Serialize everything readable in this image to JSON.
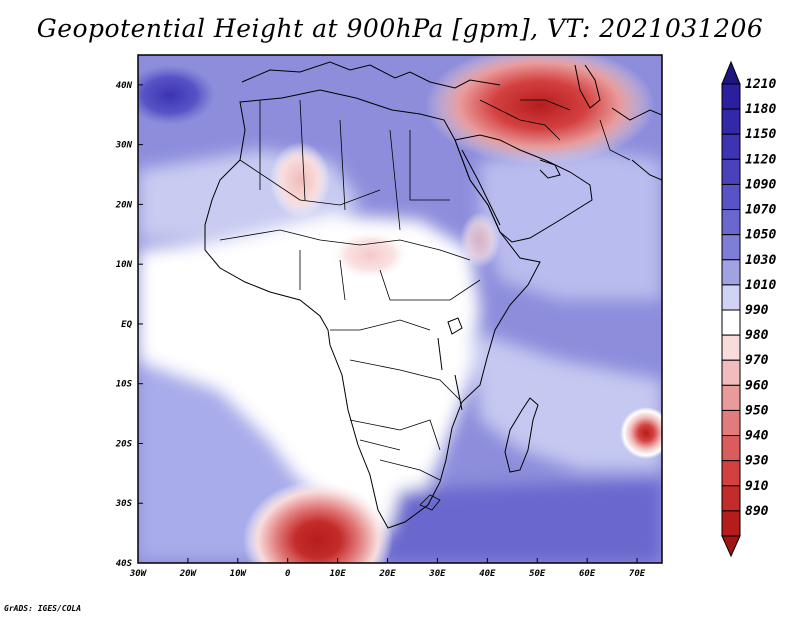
{
  "title": "Geopotential Height at 900hPa [gpm], VT: 2021031206",
  "credit": "GrADS: IGES/COLA",
  "map": {
    "lon_range": [
      -30,
      75
    ],
    "lat_range": [
      -40,
      45
    ],
    "lon_ticks": [
      {
        "lon": -30,
        "label": "30W"
      },
      {
        "lon": -20,
        "label": "20W"
      },
      {
        "lon": -10,
        "label": "10W"
      },
      {
        "lon": 0,
        "label": "0"
      },
      {
        "lon": 10,
        "label": "10E"
      },
      {
        "lon": 20,
        "label": "20E"
      },
      {
        "lon": 30,
        "label": "30E"
      },
      {
        "lon": 40,
        "label": "40E"
      },
      {
        "lon": 50,
        "label": "50E"
      },
      {
        "lon": 60,
        "label": "60E"
      },
      {
        "lon": 70,
        "label": "70E"
      }
    ],
    "lat_ticks": [
      {
        "lat": -40,
        "label": "40S"
      },
      {
        "lat": -30,
        "label": "30S"
      },
      {
        "lat": -20,
        "label": "20S"
      },
      {
        "lat": -10,
        "label": "10S"
      },
      {
        "lat": 0,
        "label": "EQ"
      },
      {
        "lat": 10,
        "label": "10N"
      },
      {
        "lat": 20,
        "label": "20N"
      },
      {
        "lat": 30,
        "label": "30N"
      },
      {
        "lat": 40,
        "label": "40N"
      }
    ],
    "features": [
      {
        "name": "low-southeast-atlantic",
        "lon": 6,
        "lat": -37,
        "value": 890
      },
      {
        "name": "low-middle-east",
        "lon": 48,
        "lat": 35,
        "value": 900
      },
      {
        "name": "low-indian-ocean",
        "lon": 71,
        "lat": -18.5,
        "value": 930
      },
      {
        "name": "heat-low-sahara",
        "lon": 3,
        "lat": 23,
        "value": 980
      },
      {
        "name": "high-azores",
        "lon": -28,
        "lat": 40,
        "value": 1150
      }
    ]
  },
  "colorbar": {
    "levels": [
      {
        "label": "1210",
        "color": "#2a1f9e"
      },
      {
        "label": "1180",
        "color": "#3328a8"
      },
      {
        "label": "1150",
        "color": "#3d33b3"
      },
      {
        "label": "1120",
        "color": "#4a42bd"
      },
      {
        "label": "1090",
        "color": "#5853c6"
      },
      {
        "label": "1070",
        "color": "#6a67ce"
      },
      {
        "label": "1050",
        "color": "#7f7ed7"
      },
      {
        "label": "1030",
        "color": "#a0a2e3"
      },
      {
        "label": "1010",
        "color": "#d0d3f3"
      },
      {
        "label": "990",
        "color": "#ffffff"
      },
      {
        "label": "980",
        "color": "#f8dcdc"
      },
      {
        "label": "970",
        "color": "#f1bcbc"
      },
      {
        "label": "960",
        "color": "#e99b9b"
      },
      {
        "label": "950",
        "color": "#e27b7b"
      },
      {
        "label": "940",
        "color": "#db5c5c"
      },
      {
        "label": "930",
        "color": "#d44040"
      },
      {
        "label": "910",
        "color": "#c42b2b"
      },
      {
        "label": "890",
        "color": "#b51d1d"
      }
    ],
    "top_color": "#1d1680",
    "bottom_color": "#a31414"
  }
}
